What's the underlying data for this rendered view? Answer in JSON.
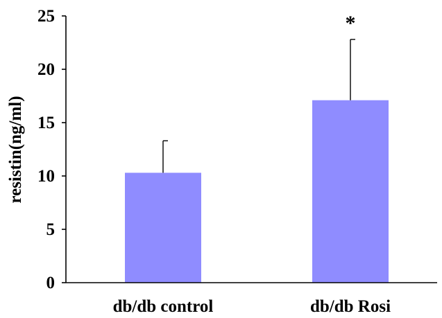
{
  "chart_data": {
    "type": "bar",
    "categories": [
      "db/db control",
      "db/db Rosi"
    ],
    "values": [
      10.3,
      17.1
    ],
    "error_plus": [
      3.0,
      5.7
    ],
    "annotations": [
      "",
      "*"
    ],
    "ylabel": "resistin(ng/ml)",
    "xlabel": "",
    "title": "",
    "ylim": [
      0,
      25
    ],
    "yticks": [
      "0",
      "5",
      "10",
      "15",
      "20",
      "25"
    ],
    "ytick_values": [
      0,
      5,
      10,
      15,
      20,
      25
    ],
    "bar_color": "#8f8cff",
    "grid": false,
    "legend": "none"
  }
}
